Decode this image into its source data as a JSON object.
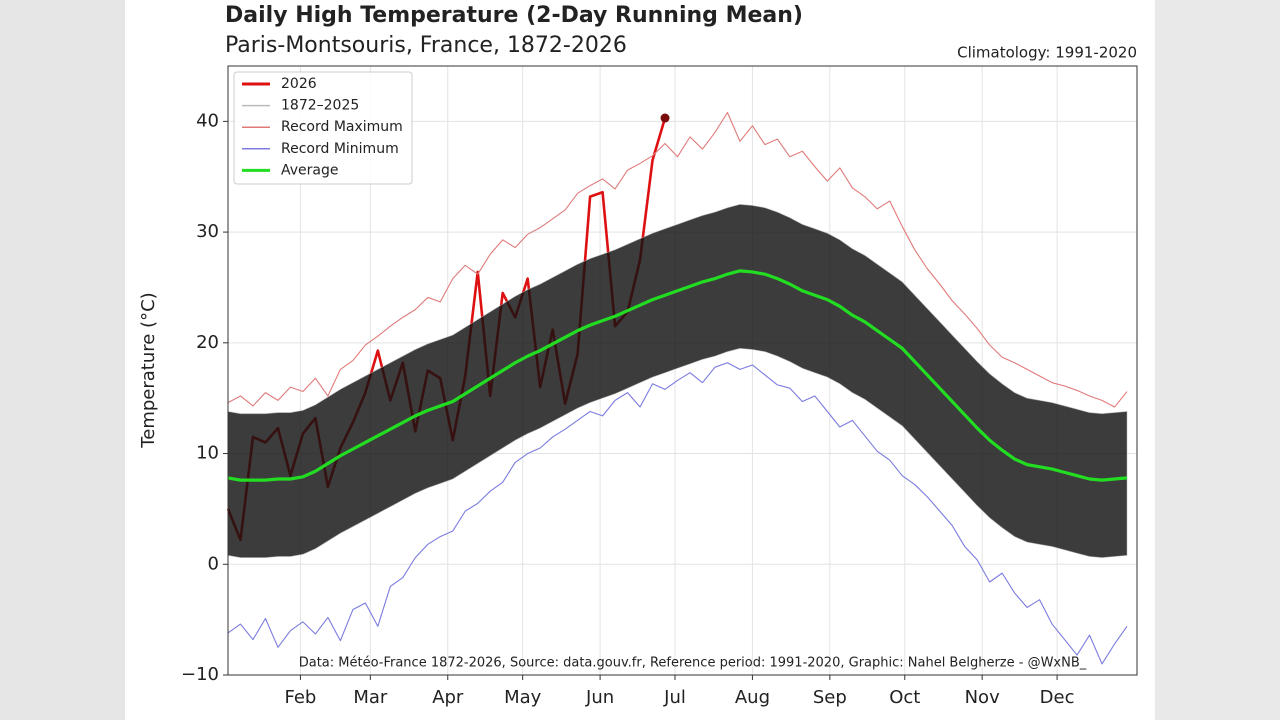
{
  "chart_data": {
    "type": "line",
    "title": "Daily High Temperature (2-Day Running Mean)",
    "subtitle": "Paris-Montsouris, France, 1872-2026",
    "climatology_note": "Climatology: 1991-2020",
    "source_note": "Data: Météo-France 1872-2026, Source: data.gouv.fr, Reference period: 1991-2020, Graphic: Nahel Belgherze - @WxNB_",
    "y_label": "Temperature (°C)",
    "grid": true,
    "legend": "upper left",
    "xlim": [
      2,
      366
    ],
    "ylim": [
      -10,
      45
    ],
    "xticks": [
      {
        "value": 31,
        "label": "Feb"
      },
      {
        "value": 59,
        "label": "Mar"
      },
      {
        "value": 90,
        "label": "Apr"
      },
      {
        "value": 120,
        "label": "May"
      },
      {
        "value": 151,
        "label": "Jun"
      },
      {
        "value": 181,
        "label": "Jul"
      },
      {
        "value": 212,
        "label": "Aug"
      },
      {
        "value": 243,
        "label": "Sep"
      },
      {
        "value": 273,
        "label": "Oct"
      },
      {
        "value": 304,
        "label": "Nov"
      },
      {
        "value": 334,
        "label": "Dec"
      }
    ],
    "yticks": [
      {
        "value": -10,
        "label": "−10"
      },
      0,
      10,
      20,
      30,
      40
    ],
    "x": [
      2,
      7,
      12,
      17,
      22,
      27,
      32,
      37,
      42,
      47,
      52,
      57,
      62,
      67,
      72,
      77,
      82,
      87,
      92,
      97,
      102,
      107,
      112,
      117,
      122,
      127,
      132,
      137,
      142,
      147,
      152,
      157,
      162,
      167,
      172,
      177,
      182,
      187,
      192,
      197,
      202,
      207,
      212,
      217,
      222,
      227,
      232,
      237,
      242,
      247,
      252,
      257,
      262,
      267,
      272,
      277,
      282,
      287,
      292,
      297,
      302,
      307,
      312,
      317,
      322,
      327,
      332,
      337,
      342,
      347,
      352,
      357,
      362
    ],
    "series": [
      {
        "name": "2026",
        "color": "#dd1111",
        "values": [
          5.0,
          2.2,
          11.5,
          11.0,
          12.3,
          8.0,
          11.8,
          13.2,
          7.0,
          10.5,
          12.8,
          15.5,
          19.3,
          14.8,
          18.2,
          12.0,
          17.5,
          16.8,
          11.2,
          17.0,
          26.4,
          15.2,
          24.5,
          22.3,
          25.8,
          16.0,
          21.2,
          14.5,
          19.0,
          33.2,
          33.6,
          21.5,
          22.8,
          27.5,
          36.5,
          40.3,
          null,
          null,
          null,
          null,
          null,
          null,
          null,
          null,
          null,
          null,
          null,
          null,
          null,
          null,
          null,
          null,
          null,
          null,
          null,
          null,
          null,
          null,
          null,
          null,
          null,
          null,
          null,
          null,
          null,
          null,
          null,
          null,
          null,
          null,
          null,
          null,
          null
        ]
      },
      {
        "name": "1872–2025",
        "color": "#bbbbbb",
        "high": [
          13.8,
          13.6,
          13.6,
          13.6,
          13.7,
          13.7,
          13.9,
          14.4,
          15.1,
          15.8,
          16.4,
          17.0,
          17.6,
          18.2,
          18.8,
          19.4,
          19.9,
          20.3,
          20.7,
          21.4,
          22.1,
          22.8,
          23.5,
          24.2,
          24.8,
          25.3,
          25.9,
          26.5,
          27.1,
          27.6,
          28.0,
          28.4,
          28.9,
          29.4,
          29.9,
          30.3,
          30.7,
          31.1,
          31.5,
          31.8,
          32.2,
          32.5,
          32.4,
          32.2,
          31.8,
          31.3,
          30.7,
          30.3,
          29.9,
          29.3,
          28.5,
          27.9,
          27.1,
          26.3,
          25.5,
          24.3,
          23.1,
          21.9,
          20.7,
          19.5,
          18.3,
          17.2,
          16.3,
          15.5,
          15.0,
          14.8,
          14.6,
          14.3,
          14.0,
          13.7,
          13.6,
          13.7,
          13.8
        ],
        "low": [
          0.8,
          0.6,
          0.6,
          0.6,
          0.7,
          0.7,
          0.9,
          1.4,
          2.1,
          2.8,
          3.4,
          4.0,
          4.6,
          5.2,
          5.8,
          6.4,
          6.9,
          7.3,
          7.7,
          8.4,
          9.1,
          9.8,
          10.5,
          11.2,
          11.8,
          12.3,
          12.9,
          13.5,
          14.1,
          14.6,
          15.0,
          15.4,
          15.9,
          16.4,
          16.9,
          17.3,
          17.7,
          18.1,
          18.5,
          18.8,
          19.2,
          19.5,
          19.4,
          19.2,
          18.8,
          18.3,
          17.7,
          17.3,
          16.9,
          16.3,
          15.5,
          14.9,
          14.1,
          13.3,
          12.5,
          11.3,
          10.1,
          8.9,
          7.7,
          6.5,
          5.3,
          4.2,
          3.3,
          2.5,
          2.0,
          1.8,
          1.6,
          1.3,
          1.0,
          0.7,
          0.6,
          0.7,
          0.8
        ]
      },
      {
        "name": "Record Maximum",
        "color": "#e07a7a",
        "values": [
          14.6,
          15.2,
          14.3,
          15.5,
          14.8,
          16.0,
          15.6,
          16.8,
          15.2,
          17.6,
          18.4,
          19.8,
          20.6,
          21.5,
          22.3,
          23.0,
          24.1,
          23.7,
          25.8,
          27.0,
          26.2,
          28.0,
          29.3,
          28.6,
          29.8,
          30.4,
          31.2,
          32.0,
          33.5,
          34.2,
          34.8,
          33.9,
          35.6,
          36.2,
          36.9,
          38.0,
          36.8,
          38.6,
          37.5,
          39.0,
          40.8,
          38.2,
          39.6,
          37.9,
          38.4,
          36.8,
          37.3,
          35.9,
          34.6,
          35.8,
          34.0,
          33.2,
          32.1,
          32.8,
          30.5,
          28.4,
          26.7,
          25.3,
          23.8,
          22.6,
          21.3,
          19.8,
          18.7,
          18.2,
          17.6,
          17.0,
          16.4,
          16.1,
          15.7,
          15.2,
          14.8,
          14.2,
          15.6
        ]
      },
      {
        "name": "Record Minimum",
        "color": "#7b7be0",
        "values": [
          -6.2,
          -5.4,
          -6.8,
          -4.9,
          -7.5,
          -6.0,
          -5.2,
          -6.3,
          -4.8,
          -6.9,
          -4.1,
          -3.5,
          -5.6,
          -2.0,
          -1.2,
          0.6,
          1.8,
          2.5,
          3.0,
          4.8,
          5.5,
          6.6,
          7.4,
          9.2,
          10.0,
          10.5,
          11.5,
          12.2,
          13.0,
          13.8,
          13.4,
          14.8,
          15.5,
          14.2,
          16.3,
          15.8,
          16.6,
          17.3,
          16.4,
          17.8,
          18.2,
          17.6,
          18.0,
          17.1,
          16.2,
          15.9,
          14.7,
          15.2,
          13.8,
          12.4,
          13.0,
          11.6,
          10.2,
          9.4,
          8.0,
          7.2,
          6.1,
          4.8,
          3.5,
          1.6,
          0.4,
          -1.6,
          -0.8,
          -2.6,
          -3.9,
          -3.2,
          -5.4,
          -6.8,
          -8.2,
          -6.4,
          -9.0,
          -7.2,
          -5.6
        ]
      },
      {
        "name": "Average",
        "color": "#22dd22",
        "values": [
          7.8,
          7.6,
          7.6,
          7.6,
          7.7,
          7.7,
          7.9,
          8.4,
          9.1,
          9.8,
          10.4,
          11.0,
          11.6,
          12.2,
          12.8,
          13.4,
          13.9,
          14.3,
          14.7,
          15.4,
          16.1,
          16.8,
          17.5,
          18.2,
          18.8,
          19.3,
          19.9,
          20.5,
          21.1,
          21.6,
          22.0,
          22.4,
          22.9,
          23.4,
          23.9,
          24.3,
          24.7,
          25.1,
          25.5,
          25.8,
          26.2,
          26.5,
          26.4,
          26.2,
          25.8,
          25.3,
          24.7,
          24.3,
          23.9,
          23.3,
          22.5,
          21.9,
          21.1,
          20.3,
          19.5,
          18.3,
          17.1,
          15.9,
          14.7,
          13.5,
          12.3,
          11.2,
          10.3,
          9.5,
          9.0,
          8.8,
          8.6,
          8.3,
          8.0,
          7.7,
          7.6,
          7.7,
          7.8
        ]
      }
    ]
  }
}
